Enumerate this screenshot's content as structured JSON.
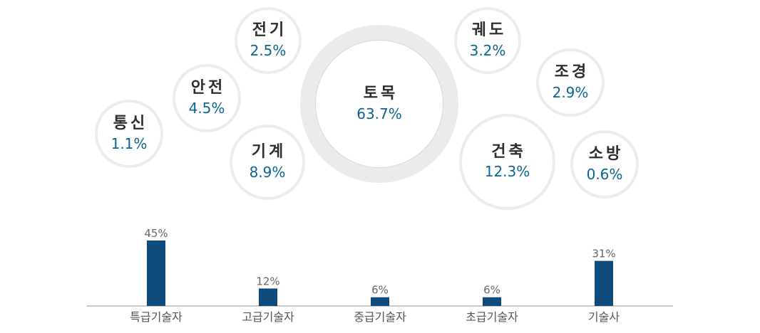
{
  "chart_data": [
    {
      "type": "bubble",
      "items": [
        {
          "name": "통신",
          "value": "1.1%"
        },
        {
          "name": "안전",
          "value": "4.5%"
        },
        {
          "name": "전기",
          "value": "2.5%"
        },
        {
          "name": "기계",
          "value": "8.9%"
        },
        {
          "name": "토목",
          "value": "63.7%"
        },
        {
          "name": "궤도",
          "value": "3.2%"
        },
        {
          "name": "조경",
          "value": "2.9%"
        },
        {
          "name": "건축",
          "value": "12.3%"
        },
        {
          "name": "소방",
          "value": "0.6%"
        }
      ]
    },
    {
      "type": "bar",
      "categories": [
        "특급기술자",
        "고급기술자",
        "중급기술자",
        "초급기술자",
        "기술사"
      ],
      "values": [
        45,
        12,
        6,
        6,
        31
      ],
      "labels": [
        "45%",
        "12%",
        "6%",
        "6%",
        "31%"
      ],
      "ylim": [
        0,
        45
      ],
      "bar_color": "#0e4a7c",
      "grid": false
    }
  ]
}
